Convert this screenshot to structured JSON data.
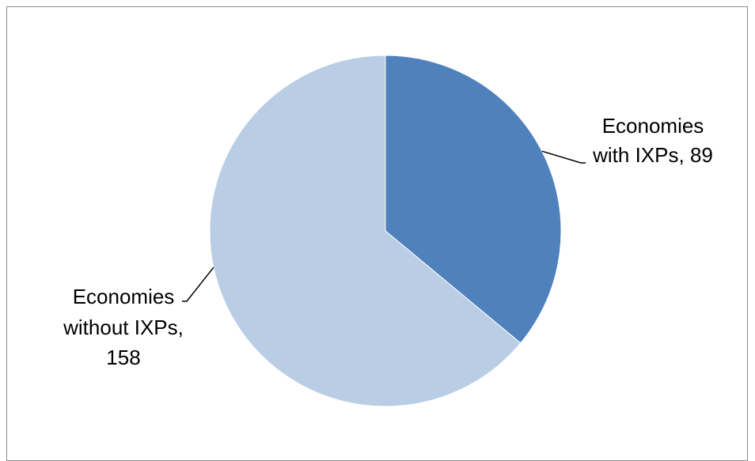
{
  "chart_data": {
    "type": "pie",
    "title": "",
    "slices": [
      {
        "category": "Economies with IXPs",
        "value": 89,
        "label_lines": [
          "Economies",
          "with IXPs, 89"
        ],
        "color": "#4F81BD"
      },
      {
        "category": "Economies without IXPs",
        "value": 158,
        "label_lines": [
          "Economies",
          "without IXPs,",
          "158"
        ],
        "color": "#B9CDE5"
      }
    ],
    "start_angle_deg": 0,
    "direction": "clockwise",
    "legend": "none",
    "data_labels": "outside with leader lines"
  }
}
